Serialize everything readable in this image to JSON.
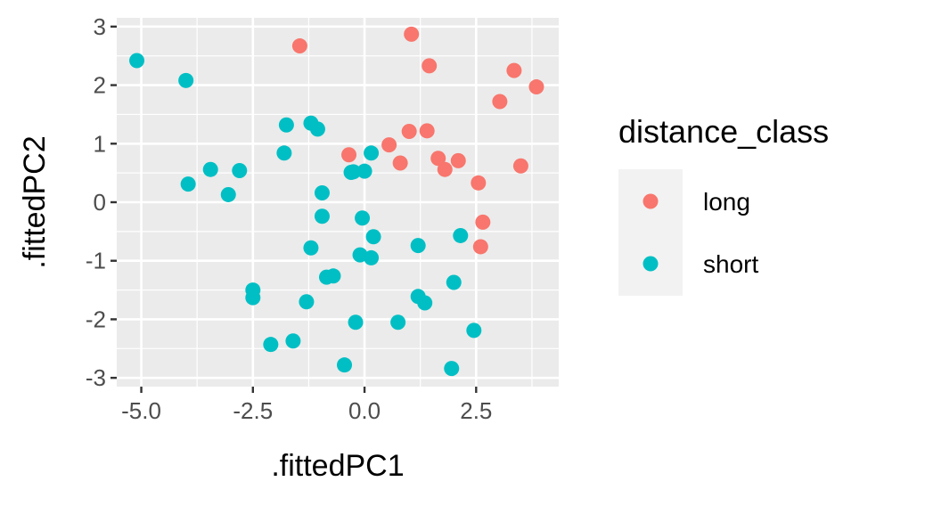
{
  "chart_data": {
    "type": "scatter",
    "xlabel": ".fittedPC1",
    "ylabel": ".fittedPC2",
    "xlim": [
      -5.55,
      4.35
    ],
    "ylim": [
      -3.15,
      3.15
    ],
    "x_ticks": [
      -5.0,
      -2.5,
      0.0,
      2.5
    ],
    "x_tick_labels": [
      "-5.0",
      "-2.5",
      "0.0",
      "2.5"
    ],
    "y_ticks": [
      3,
      2,
      1,
      0,
      -1,
      -2,
      -3
    ],
    "y_tick_labels": [
      "3",
      "2",
      "1",
      "0",
      "-1",
      "-2",
      "-3"
    ],
    "grid": true,
    "background_color": "#ebebeb",
    "legend": {
      "title": "distance_class",
      "position": "right",
      "entries": [
        "long",
        "short"
      ]
    },
    "series": [
      {
        "name": "long",
        "color": "#f8766d",
        "points": [
          [
            -1.45,
            2.67
          ],
          [
            1.05,
            2.87
          ],
          [
            1.45,
            2.33
          ],
          [
            3.35,
            2.25
          ],
          [
            3.85,
            1.97
          ],
          [
            3.03,
            1.72
          ],
          [
            1.0,
            1.21
          ],
          [
            1.4,
            1.22
          ],
          [
            0.55,
            0.98
          ],
          [
            -0.35,
            0.81
          ],
          [
            0.8,
            0.67
          ],
          [
            1.65,
            0.75
          ],
          [
            2.1,
            0.71
          ],
          [
            1.8,
            0.56
          ],
          [
            3.5,
            0.62
          ],
          [
            2.55,
            0.33
          ],
          [
            2.65,
            -0.34
          ],
          [
            2.6,
            -0.76
          ]
        ]
      },
      {
        "name": "short",
        "color": "#00bfc4",
        "points": [
          [
            -5.1,
            2.42
          ],
          [
            -4.0,
            2.08
          ],
          [
            -1.2,
            1.35
          ],
          [
            -1.75,
            1.32
          ],
          [
            -1.05,
            1.25
          ],
          [
            -1.8,
            0.84
          ],
          [
            0.15,
            0.84
          ],
          [
            -3.45,
            0.56
          ],
          [
            -2.8,
            0.54
          ],
          [
            -0.25,
            0.52
          ],
          [
            -0.3,
            0.51
          ],
          [
            0.0,
            0.53
          ],
          [
            -3.95,
            0.31
          ],
          [
            -3.05,
            0.13
          ],
          [
            -0.95,
            0.16
          ],
          [
            -0.95,
            -0.24
          ],
          [
            -0.05,
            -0.27
          ],
          [
            0.2,
            -0.59
          ],
          [
            2.15,
            -0.57
          ],
          [
            1.2,
            -0.74
          ],
          [
            -1.2,
            -0.78
          ],
          [
            -0.1,
            -0.9
          ],
          [
            0.15,
            -0.95
          ],
          [
            -0.85,
            -1.28
          ],
          [
            -0.7,
            -1.26
          ],
          [
            2.0,
            -1.37
          ],
          [
            -2.5,
            -1.5
          ],
          [
            -2.5,
            -1.63
          ],
          [
            1.2,
            -1.61
          ],
          [
            1.35,
            -1.72
          ],
          [
            -1.3,
            -1.7
          ],
          [
            -0.2,
            -2.05
          ],
          [
            0.75,
            -2.05
          ],
          [
            2.45,
            -2.19
          ],
          [
            -1.6,
            -2.37
          ],
          [
            -2.1,
            -2.43
          ],
          [
            -0.45,
            -2.78
          ],
          [
            1.95,
            -2.84
          ]
        ]
      }
    ]
  }
}
